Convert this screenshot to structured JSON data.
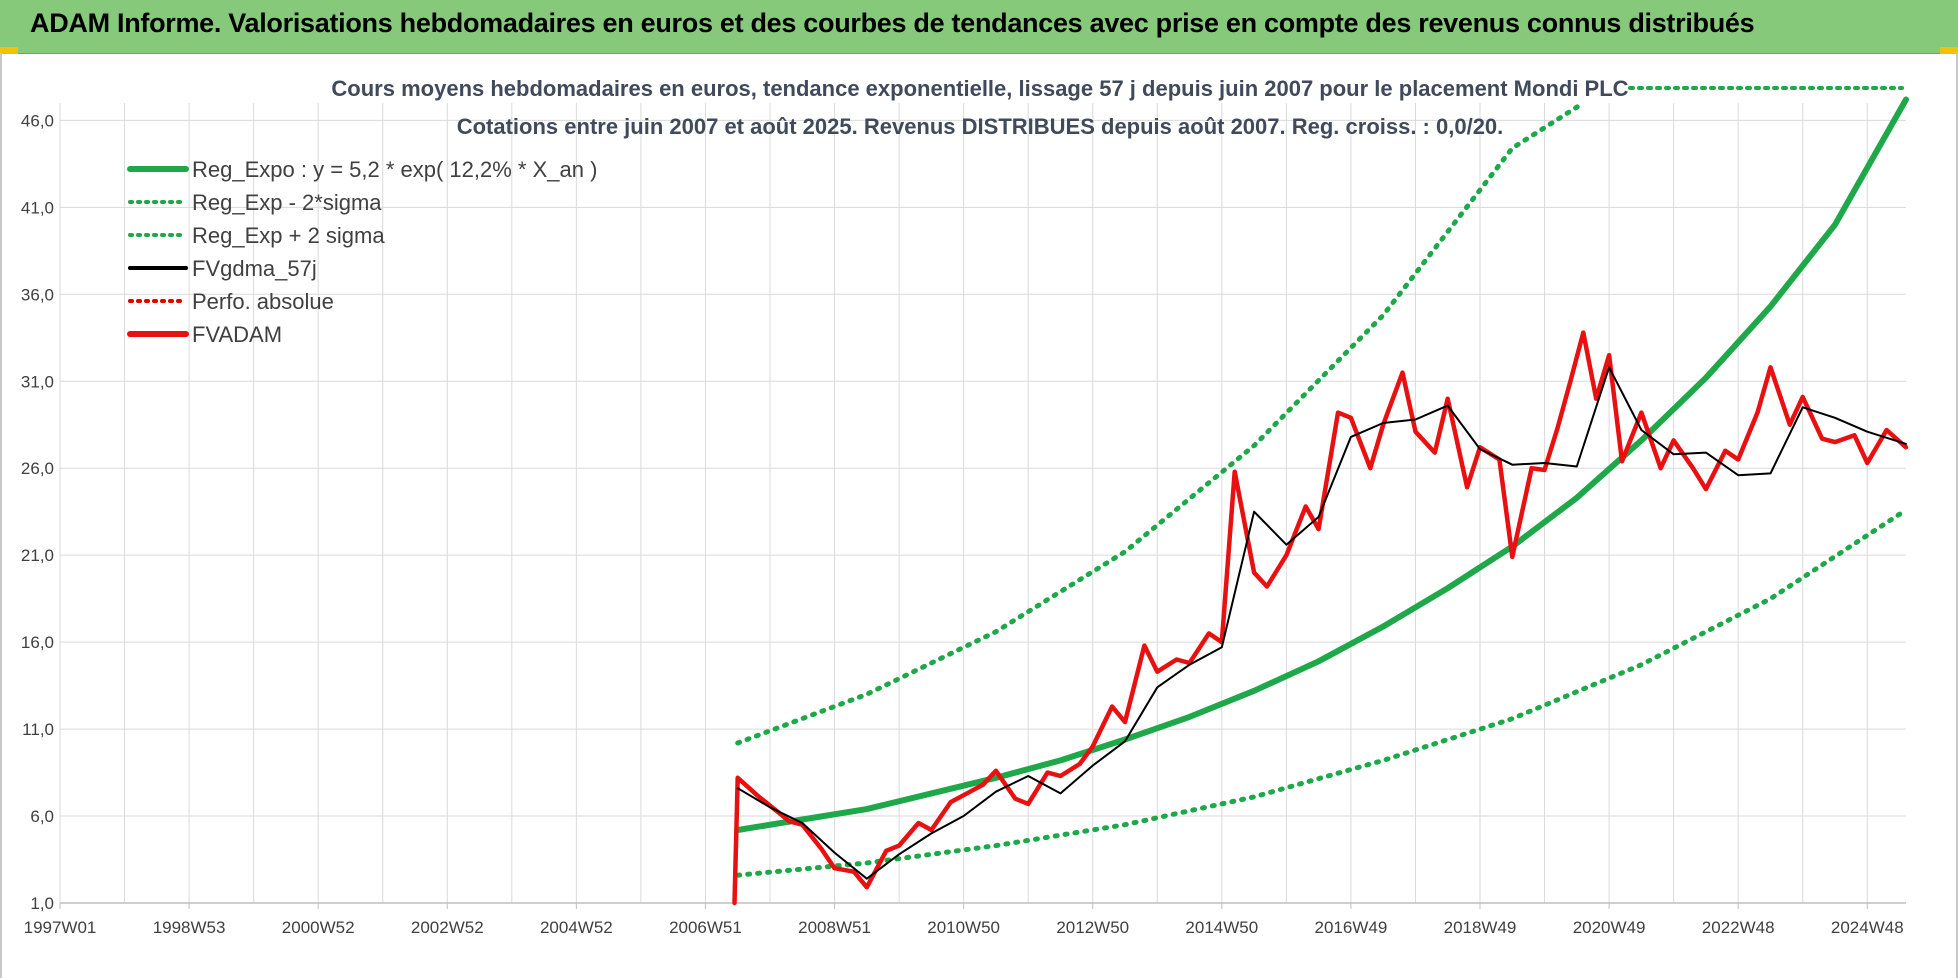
{
  "banner": {
    "title": "ADAM Informe. Valorisations hebdomadaires en euros et des courbes de tendances avec prise en compte des revenus connus distribués"
  },
  "colors": {
    "banner": "#86c97b",
    "reg_expo": "#1fa84a",
    "sigma_bands": "#1fa84a",
    "fvgdma": "#000000",
    "perfo": "#e00000",
    "fvadam": "#e81010"
  },
  "chart_data": {
    "type": "line",
    "title_line1": "Cours moyens hebdomadaires en euros, tendance exponentielle, lissage 57 j depuis juin 2007 pour le placement Mondi PLC",
    "title_line2": "Cotations entre juin 2007 et août 2025. Revenus DISTRIBUES depuis août 2007. Reg. croiss. : 0,0/20.",
    "xlabel": "",
    "ylabel": "",
    "ylim": [
      1,
      47
    ],
    "xlim": [
      1997.0,
      2025.6
    ],
    "y_ticks": [
      "1,0",
      "6,0",
      "11,0",
      "16,0",
      "21,0",
      "26,0",
      "31,0",
      "36,0",
      "41,0",
      "46,0"
    ],
    "y_tick_values": [
      1,
      6,
      11,
      16,
      21,
      26,
      31,
      36,
      41,
      46
    ],
    "x_ticks": [
      "1997W01",
      "1998W53",
      "2000W52",
      "2002W52",
      "2004W52",
      "2006W51",
      "2008W51",
      "2010W50",
      "2012W50",
      "2014W50",
      "2016W49",
      "2018W49",
      "2020W49",
      "2022W48",
      "2024W48"
    ],
    "x_tick_values": [
      1997.0,
      1999.0,
      2001.0,
      2003.0,
      2005.0,
      2007.0,
      2009.0,
      2011.0,
      2013.0,
      2015.0,
      2017.0,
      2019.0,
      2021.0,
      2023.0,
      2025.0
    ],
    "grid": true,
    "legend_position": "top-left",
    "legend": [
      {
        "name": "Reg_Expo : y = 5,2 * exp( 12,2% *  X_an )",
        "style": "solid-thick",
        "color": "#1fa84a"
      },
      {
        "name": "Reg_Exp - 2*sigma",
        "style": "dotted",
        "color": "#1fa84a"
      },
      {
        "name": "Reg_Exp + 2 sigma",
        "style": "dotted",
        "color": "#1fa84a"
      },
      {
        "name": "FVgdma_57j",
        "style": "solid",
        "color": "#000000"
      },
      {
        "name": "Perfo. absolue",
        "style": "dotted",
        "color": "#e00000"
      },
      {
        "name": "FVADAM",
        "style": "solid-thick",
        "color": "#e81010"
      }
    ],
    "series": [
      {
        "name": "Reg_Expo : y = 5,2 * exp( 12,2% *  X_an )",
        "x": [
          2007.5,
          2008.5,
          2009.5,
          2010.5,
          2011.5,
          2012.5,
          2013.5,
          2014.5,
          2015.5,
          2016.5,
          2017.5,
          2018.5,
          2019.5,
          2020.5,
          2021.5,
          2022.5,
          2023.5,
          2024.5,
          2025.6
        ],
        "y": [
          5.2,
          5.8,
          6.4,
          7.3,
          8.2,
          9.2,
          10.4,
          11.7,
          13.2,
          14.9,
          16.9,
          19.1,
          21.5,
          24.3,
          27.6,
          31.2,
          35.3,
          40.0,
          47.2
        ]
      },
      {
        "name": "Reg_Exp - 2*sigma",
        "x": [
          2007.5,
          2009.5,
          2011.5,
          2013.5,
          2015.5,
          2017.5,
          2019.5,
          2021.5,
          2023.5,
          2025.6
        ],
        "y": [
          2.6,
          3.3,
          4.3,
          5.5,
          7.1,
          9.2,
          11.6,
          14.7,
          18.5,
          23.6
        ]
      },
      {
        "name": "Reg_Exp + 2 sigma",
        "x": [
          2007.5,
          2009.5,
          2011.5,
          2013.5,
          2015.5,
          2017.5,
          2019.5,
          2020.6
        ],
        "y": [
          10.2,
          13.0,
          16.6,
          21.2,
          27.3,
          34.8,
          44.4,
          47.0
        ]
      },
      {
        "name": "FVgdma_57j",
        "x": [
          2007.5,
          2008.0,
          2008.5,
          2009.0,
          2009.5,
          2010.0,
          2010.5,
          2011.0,
          2011.5,
          2012.0,
          2012.5,
          2013.0,
          2013.5,
          2014.0,
          2014.5,
          2015.0,
          2015.5,
          2016.0,
          2016.5,
          2017.0,
          2017.5,
          2018.0,
          2018.5,
          2019.0,
          2019.5,
          2020.0,
          2020.5,
          2021.0,
          2021.5,
          2022.0,
          2022.5,
          2023.0,
          2023.5,
          2024.0,
          2024.5,
          2025.0,
          2025.6
        ],
        "y": [
          7.6,
          6.5,
          5.6,
          3.9,
          2.4,
          3.8,
          5.0,
          6.0,
          7.4,
          8.3,
          7.3,
          8.9,
          10.3,
          13.4,
          14.7,
          15.7,
          23.5,
          21.6,
          23.2,
          27.8,
          28.6,
          28.8,
          29.6,
          27.1,
          26.2,
          26.3,
          26.1,
          31.8,
          28.2,
          26.8,
          26.9,
          25.6,
          25.7,
          29.5,
          28.9,
          28.1,
          27.4
        ]
      },
      {
        "name": "FVADAM",
        "x": [
          2007.45,
          2007.5,
          2007.8,
          2008.0,
          2008.3,
          2008.5,
          2008.8,
          2009.0,
          2009.3,
          2009.5,
          2009.8,
          2010.0,
          2010.3,
          2010.5,
          2010.8,
          2011.0,
          2011.3,
          2011.5,
          2011.8,
          2012.0,
          2012.3,
          2012.5,
          2012.8,
          2013.0,
          2013.3,
          2013.5,
          2013.8,
          2014.0,
          2014.3,
          2014.5,
          2014.8,
          2015.0,
          2015.2,
          2015.5,
          2015.7,
          2016.0,
          2016.3,
          2016.5,
          2016.8,
          2017.0,
          2017.3,
          2017.5,
          2017.8,
          2018.0,
          2018.3,
          2018.5,
          2018.8,
          2019.0,
          2019.3,
          2019.5,
          2019.8,
          2020.0,
          2020.2,
          2020.4,
          2020.6,
          2020.8,
          2021.0,
          2021.2,
          2021.5,
          2021.8,
          2022.0,
          2022.3,
          2022.5,
          2022.8,
          2023.0,
          2023.3,
          2023.5,
          2023.8,
          2024.0,
          2024.3,
          2024.5,
          2024.8,
          2025.0,
          2025.3,
          2025.6
        ],
        "y": [
          1.0,
          8.2,
          7.2,
          6.6,
          5.7,
          5.5,
          4.1,
          3.0,
          2.8,
          1.9,
          4.0,
          4.3,
          5.6,
          5.2,
          6.8,
          7.2,
          7.8,
          8.6,
          7.0,
          6.7,
          8.5,
          8.3,
          9.0,
          10.0,
          12.3,
          11.4,
          15.8,
          14.3,
          15.0,
          14.8,
          16.5,
          16.0,
          25.8,
          20.0,
          19.2,
          21.0,
          23.8,
          22.5,
          29.2,
          28.9,
          26.0,
          28.5,
          31.5,
          28.1,
          26.9,
          30.0,
          24.9,
          27.2,
          26.5,
          20.9,
          26.0,
          25.9,
          28.3,
          31.0,
          33.8,
          30.0,
          32.5,
          26.4,
          29.2,
          26.0,
          27.6,
          26.0,
          24.8,
          27.0,
          26.5,
          29.2,
          31.8,
          28.5,
          30.1,
          27.7,
          27.5,
          27.9,
          26.3,
          28.2,
          27.2
        ]
      }
    ]
  }
}
